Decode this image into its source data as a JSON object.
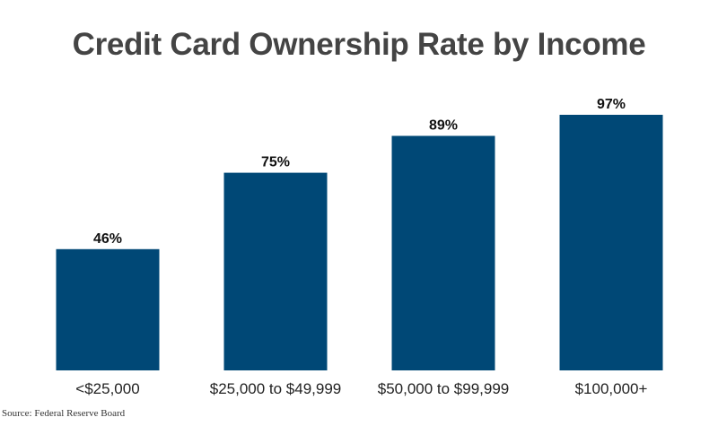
{
  "chart_data": {
    "type": "bar",
    "title": "Credit Card Ownership Rate by Income",
    "categories": [
      "<$25,000",
      "$25,000 to $49,999",
      "$50,000 to $99,999",
      "$100,000+"
    ],
    "values": [
      46,
      75,
      89,
      97
    ],
    "value_labels": [
      "46%",
      "75%",
      "89%",
      "97%"
    ],
    "xlabel": "",
    "ylabel": "",
    "ylim": [
      0,
      100
    ],
    "grid": false,
    "bar_color": "#004876"
  },
  "source": "Source: Federal Reserve Board"
}
